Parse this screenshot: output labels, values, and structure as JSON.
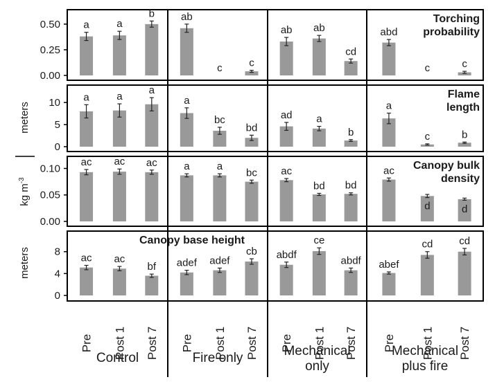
{
  "chart_data": {
    "type": "bar",
    "groups": [
      "Control",
      "Fire only",
      "Mechanical only",
      "Mechanical plus fire"
    ],
    "group_label_lines": [
      [
        "Control"
      ],
      [
        "Fire only"
      ],
      [
        "Mechanical",
        "only"
      ],
      [
        "Mechanical",
        "plus fire"
      ]
    ],
    "categories": [
      "Pre",
      "Post 1",
      "Post 7"
    ],
    "bar_color": "#999999",
    "panels": [
      {
        "id": "torching",
        "title_lines": [
          "Torching",
          "probability"
        ],
        "title_align": "right",
        "ylim": [
          0,
          0.6
        ],
        "yticks": [
          "0.00",
          "0.25",
          "0.50"
        ],
        "ytick_values": [
          0,
          0.25,
          0.5
        ],
        "values": [
          [
            0.38,
            0.39,
            0.5
          ],
          [
            0.46,
            0.0,
            0.04
          ],
          [
            0.33,
            0.36,
            0.14
          ],
          [
            0.32,
            0.0,
            0.03
          ]
        ],
        "errors": [
          [
            0.04,
            0.04,
            0.03
          ],
          [
            0.04,
            0.0,
            0.01
          ],
          [
            0.04,
            0.03,
            0.02
          ],
          [
            0.03,
            0.0,
            0.01
          ]
        ],
        "letters": [
          [
            "a",
            "a",
            "b"
          ],
          [
            "ab",
            "c",
            "c"
          ],
          [
            "ab",
            "ab",
            "cd"
          ],
          [
            "abd",
            "c",
            "c"
          ]
        ]
      },
      {
        "id": "flame",
        "title_lines": [
          "Flame",
          "length"
        ],
        "title_align": "right",
        "ylim": [
          0,
          13
        ],
        "yticks": [
          "0",
          "5",
          "10"
        ],
        "ytick_values": [
          0,
          5,
          10
        ],
        "values": [
          [
            8.0,
            8.2,
            9.6
          ],
          [
            7.6,
            3.6,
            2.0
          ],
          [
            4.6,
            4.1,
            1.4
          ],
          [
            6.4,
            0.5,
            0.9
          ]
        ],
        "errors": [
          [
            1.5,
            1.5,
            1.5
          ],
          [
            1.2,
            0.8,
            0.6
          ],
          [
            0.9,
            0.5,
            0.2
          ],
          [
            1.2,
            0.15,
            0.15
          ]
        ],
        "letters": [
          [
            "a",
            "a",
            "a"
          ],
          [
            "a",
            "bc",
            "bd"
          ],
          [
            "ad",
            "a",
            "b"
          ],
          [
            "a",
            "c",
            "b"
          ]
        ]
      },
      {
        "id": "cbd",
        "title_lines": [
          "Canopy bulk",
          "density"
        ],
        "title_align": "right",
        "ylim": [
          0,
          0.115
        ],
        "yticks": [
          "0.00",
          "0.05",
          "0.10"
        ],
        "ytick_values": [
          0,
          0.05,
          0.1
        ],
        "values": [
          [
            0.093,
            0.094,
            0.093
          ],
          [
            0.087,
            0.087,
            0.075
          ],
          [
            0.078,
            0.051,
            0.052
          ],
          [
            0.079,
            0.048,
            0.042
          ]
        ],
        "errors": [
          [
            0.005,
            0.005,
            0.004
          ],
          [
            0.003,
            0.003,
            0.003
          ],
          [
            0.003,
            0.002,
            0.002
          ],
          [
            0.003,
            0.003,
            0.002
          ]
        ],
        "letters": [
          [
            "ac",
            "ac",
            "ac"
          ],
          [
            "a",
            "a",
            "bc"
          ],
          [
            "ac",
            "bd",
            "bd"
          ],
          [
            "ac",
            "d",
            "d"
          ]
        ]
      },
      {
        "id": "cbh",
        "title_lines": [
          "Canopy base height"
        ],
        "title_align": "center",
        "ylim": [
          0,
          11
        ],
        "yticks": [
          "0",
          "4",
          "8"
        ],
        "ytick_values": [
          0,
          4,
          8
        ],
        "values": [
          [
            5.1,
            4.9,
            3.6
          ],
          [
            4.2,
            4.6,
            6.2
          ],
          [
            5.6,
            8.1,
            4.6
          ],
          [
            4.1,
            7.4,
            8.0
          ]
        ],
        "errors": [
          [
            0.4,
            0.4,
            0.3
          ],
          [
            0.4,
            0.4,
            0.5
          ],
          [
            0.5,
            0.6,
            0.4
          ],
          [
            0.2,
            0.6,
            0.6
          ]
        ],
        "letters": [
          [
            "ac",
            "ac",
            "bf"
          ],
          [
            "adef",
            "adef",
            "cb"
          ],
          [
            "abdf",
            "ce",
            "abdf"
          ],
          [
            "abef",
            "cd",
            "cd"
          ]
        ]
      }
    ],
    "ylabels": {
      "top_pair": "meters",
      "density_base": "kg m",
      "density_sup": "-3",
      "bottom": "meters"
    }
  }
}
